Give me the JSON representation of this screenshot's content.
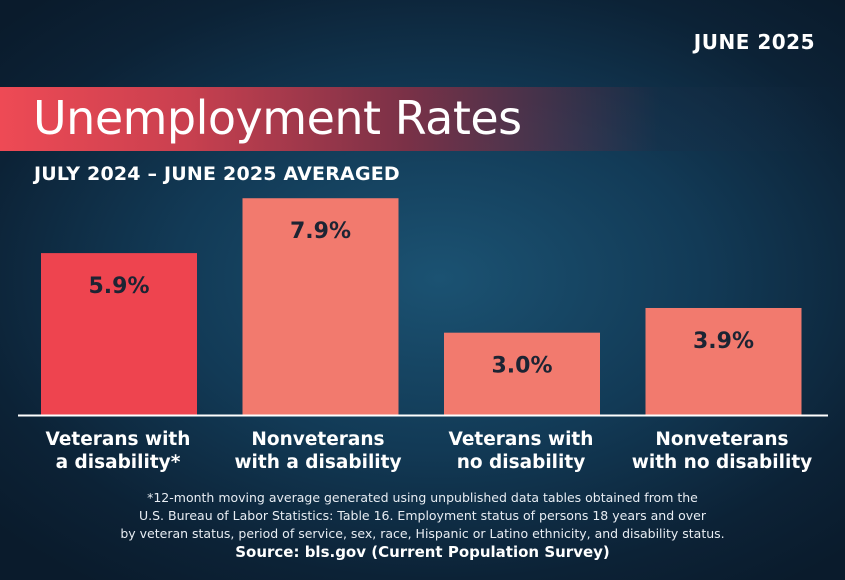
{
  "header": {
    "date": "JUNE 2025"
  },
  "chart_data": {
    "type": "bar",
    "title": "Unemployment Rates",
    "subtitle": "JULY 2024 – JUNE 2025 AVERAGED",
    "categories": [
      [
        "Veterans with",
        "a disability*"
      ],
      [
        "Nonveterans",
        "with a disability"
      ],
      [
        "Veterans with",
        "no disability"
      ],
      [
        "Nonveterans",
        "with no disability"
      ]
    ],
    "values": [
      5.9,
      7.9,
      3.0,
      3.9
    ],
    "value_labels": [
      "5.9%",
      "7.9%",
      "3.0%",
      "3.9%"
    ],
    "unit": "%",
    "bar_colors": [
      "#ee444f",
      "#f27a6e",
      "#f27a6e",
      "#f27a6e"
    ],
    "ylim": [
      0,
      8.2
    ],
    "grid": false
  },
  "footnote": {
    "lines": [
      "*12-month moving average generated using unpublished data tables obtained from the",
      "U.S. Bureau of Labor Statistics: Table 16. Employment status of persons 18 years and over",
      "by veteran status, period of service, sex, race, Hispanic or Latino ethnicity, and disability status."
    ]
  },
  "source": "Source: bls.gov (Current Population Survey)"
}
